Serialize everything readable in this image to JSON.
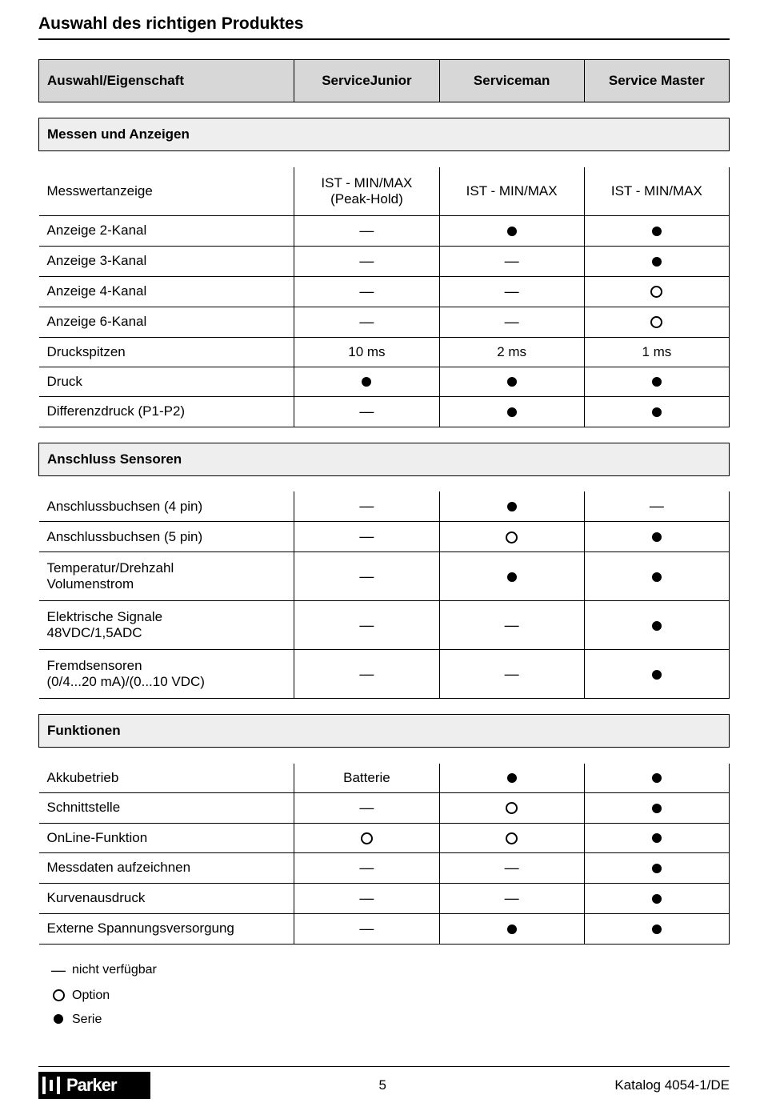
{
  "title": "Auswahl des richtigen Produktes",
  "columns": {
    "label": "Auswahl/Eigenschaft",
    "c1": "ServiceJunior",
    "c2": "Serviceman",
    "c3": "Service Master"
  },
  "sections": [
    {
      "title": "Messen und Anzeigen",
      "rows": [
        {
          "label": "Messwertanzeige",
          "v": [
            "IST - MIN/MAX\n(Peak-Hold)",
            "IST - MIN/MAX",
            "IST - MIN/MAX"
          ],
          "tall": true
        },
        {
          "label": "Anzeige 2-Kanal",
          "v": [
            "dash",
            "dot",
            "dot"
          ]
        },
        {
          "label": "Anzeige 3-Kanal",
          "v": [
            "dash",
            "dash",
            "dot"
          ]
        },
        {
          "label": "Anzeige 4-Kanal",
          "v": [
            "dash",
            "dash",
            "ring"
          ]
        },
        {
          "label": "Anzeige 6-Kanal",
          "v": [
            "dash",
            "dash",
            "ring"
          ]
        },
        {
          "label": "Druckspitzen",
          "v": [
            "10 ms",
            "2 ms",
            "1 ms"
          ]
        },
        {
          "label": "Druck",
          "v": [
            "dot",
            "dot",
            "dot"
          ]
        },
        {
          "label": "Differenzdruck (P1-P2)",
          "v": [
            "dash",
            "dot",
            "dot"
          ]
        }
      ]
    },
    {
      "title": "Anschluss Sensoren",
      "rows": [
        {
          "label": "Anschlussbuchsen (4 pin)",
          "v": [
            "dash",
            "dot",
            "dash"
          ]
        },
        {
          "label": "Anschlussbuchsen (5 pin)",
          "v": [
            "dash",
            "ring",
            "dot"
          ]
        },
        {
          "label": "Temperatur/Drehzahl\nVolumenstrom",
          "v": [
            "dash",
            "dot",
            "dot"
          ],
          "tall": true
        },
        {
          "label": "Elektrische Signale\n48VDC/1,5ADC",
          "v": [
            "dash",
            "dash",
            "dot"
          ],
          "tall": true
        },
        {
          "label": "Fremdsensoren\n(0/4...20 mA)/(0...10 VDC)",
          "v": [
            "dash",
            "dash",
            "dot"
          ],
          "tall": true
        }
      ]
    },
    {
      "title": "Funktionen",
      "rows": [
        {
          "label": "Akkubetrieb",
          "v": [
            "Batterie",
            "dot",
            "dot"
          ]
        },
        {
          "label": "Schnittstelle",
          "v": [
            "dash",
            "ring",
            "dot"
          ]
        },
        {
          "label": "OnLine-Funktion",
          "v": [
            "ring",
            "ring",
            "dot"
          ]
        },
        {
          "label": "Messdaten aufzeichnen",
          "v": [
            "dash",
            "dash",
            "dot"
          ]
        },
        {
          "label": "Kurvenausdruck",
          "v": [
            "dash",
            "dash",
            "dot"
          ]
        },
        {
          "label": "Externe Spannungsversorgung",
          "v": [
            "dash",
            "dot",
            "dot"
          ]
        }
      ]
    }
  ],
  "legend": [
    {
      "sym": "dash",
      "text": "nicht verfügbar"
    },
    {
      "sym": "ring",
      "text": "Option"
    },
    {
      "sym": "dot",
      "text": "Serie"
    }
  ],
  "footer": {
    "page": "5",
    "catalog": "Katalog 4054-1/DE",
    "logo_text": "Parker"
  }
}
